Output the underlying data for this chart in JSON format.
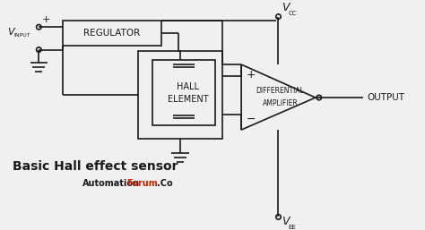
{
  "bg_color": "#f0f0f0",
  "line_color": "#1a1a1a",
  "title": "Basic Hall effect sensor",
  "watermark_auto": "Automation",
  "watermark_forum": "Forum",
  "watermark_co": ".Co",
  "watermark_color_auto": "#1a1a1a",
  "watermark_color_forum": "#cc2200",
  "regulator_label": "REGULATOR",
  "hall_line1": "HALL",
  "hall_line2": "ELEMENT",
  "diff_line1": "DIFFERENTIAL",
  "diff_line2": "AMPLIFIER",
  "output_label": "OUTPUT",
  "vinput_label": "V",
  "vinput_sub": "INPUT",
  "vcc_label": "V",
  "vcc_sub": "CC",
  "vee_label": "V",
  "vee_sub": "EE",
  "plus_sign": "+",
  "minus_sign": "−"
}
